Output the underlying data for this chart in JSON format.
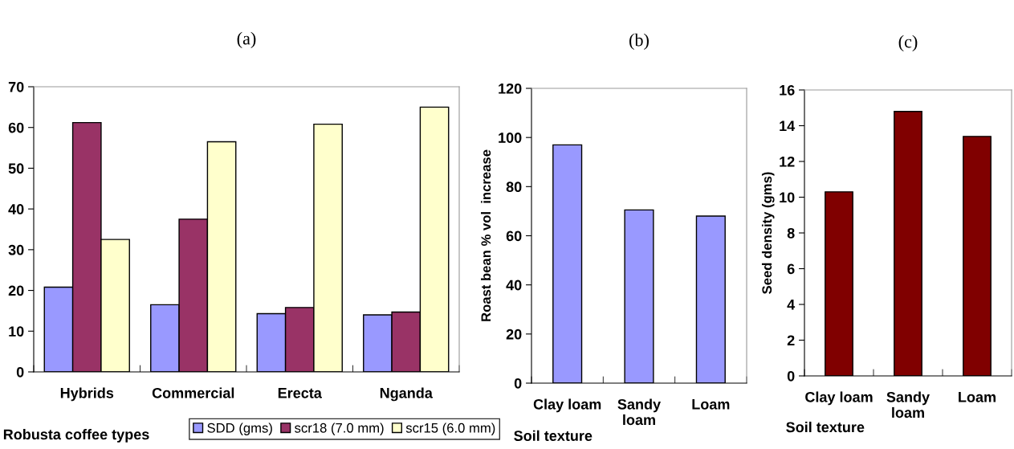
{
  "chart_data": [
    {
      "type": "bar",
      "title": "(a)",
      "xlabel": "Robusta coffee types",
      "categories": [
        "Hybrids",
        "Commercial",
        "Erecta",
        "Nganda"
      ],
      "series": [
        {
          "name": "SDD (gms)",
          "color": "#9999ff",
          "values": [
            20.8,
            16.5,
            14.3,
            14.0
          ]
        },
        {
          "name": "scr18 (7.0 mm)",
          "color": "#993366",
          "values": [
            61.2,
            37.5,
            15.8,
            14.7
          ]
        },
        {
          "name": "scr15 (6.0 mm)",
          "color": "#ffffcc",
          "values": [
            32.5,
            56.5,
            60.8,
            65.0
          ]
        }
      ],
      "ylim": [
        0,
        70
      ],
      "yticks": [
        0,
        10,
        20,
        30,
        40,
        50,
        60,
        70
      ],
      "legend": "bottom"
    },
    {
      "type": "bar",
      "title": "(b)",
      "xlabel": "Soil texture",
      "ylabel": "Roast bean % vol  increase",
      "categories": [
        "Clay loam",
        "Sandy\nloam",
        "Loam"
      ],
      "series": [
        {
          "color": "#9999ff",
          "values": [
            97,
            70.5,
            68
          ]
        }
      ],
      "ylim": [
        0,
        120
      ],
      "yticks": [
        0,
        20,
        40,
        60,
        80,
        100,
        120
      ]
    },
    {
      "type": "bar",
      "title": "(c)",
      "xlabel": "Soil texture",
      "ylabel": "Seed density (gms)",
      "categories": [
        "Clay loam",
        "Sandy\nloam",
        "Loam"
      ],
      "series": [
        {
          "color": "#800000",
          "values": [
            10.3,
            14.8,
            13.4
          ]
        }
      ],
      "ylim": [
        0,
        16
      ],
      "yticks": [
        0,
        2,
        4,
        6,
        8,
        10,
        12,
        14,
        16
      ]
    }
  ]
}
